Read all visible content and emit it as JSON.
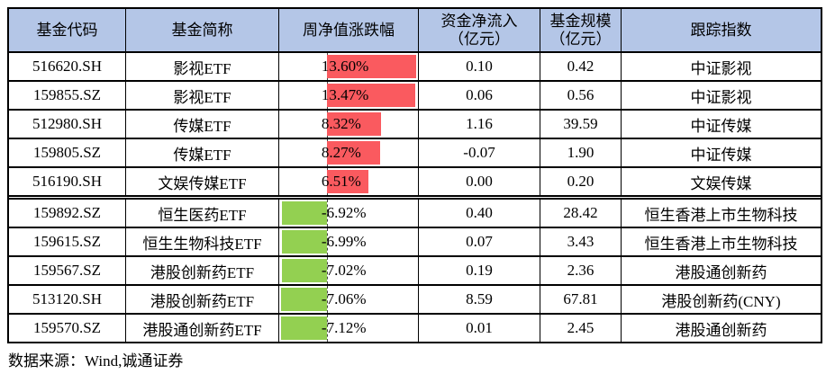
{
  "table": {
    "header_bg": "#B4C6E7",
    "border_color": "#000000",
    "columns": [
      "基金代码",
      "基金简称",
      "周净值涨跌幅",
      "资金净流入\n（亿元）",
      "基金规模\n（亿元）",
      "跟踪指数"
    ]
  },
  "chart_data": {
    "type": "table",
    "columns": [
      "基金代码",
      "基金简称",
      "周净值涨跌幅",
      "资金净流入（亿元）",
      "基金规模（亿元）",
      "跟踪指数"
    ],
    "rows": [
      {
        "code": "516620.SH",
        "name": "影视ETF",
        "change_pct": 13.6,
        "change_label": "13.60%",
        "inflow": "0.10",
        "aum": "0.42",
        "index": "中证影视"
      },
      {
        "code": "159855.SZ",
        "name": "影视ETF",
        "change_pct": 13.47,
        "change_label": "13.47%",
        "inflow": "0.06",
        "aum": "0.56",
        "index": "中证影视"
      },
      {
        "code": "512980.SH",
        "name": "传媒ETF",
        "change_pct": 8.32,
        "change_label": "8.32%",
        "inflow": "1.16",
        "aum": "39.59",
        "index": "中证传媒"
      },
      {
        "code": "159805.SZ",
        "name": "传媒ETF",
        "change_pct": 8.27,
        "change_label": "8.27%",
        "inflow": "-0.07",
        "aum": "1.90",
        "index": "中证传媒"
      },
      {
        "code": "516190.SH",
        "name": "文娱传媒ETF",
        "change_pct": 6.51,
        "change_label": "6.51%",
        "inflow": "0.00",
        "aum": "0.20",
        "index": "文娱传媒"
      },
      {
        "code": "159892.SZ",
        "name": "恒生医药ETF",
        "change_pct": -6.92,
        "change_label": "-6.92%",
        "inflow": "0.40",
        "aum": "28.42",
        "index": "恒生香港上市生物科技"
      },
      {
        "code": "159615.SZ",
        "name": "恒生生物科技ETF",
        "change_pct": -6.99,
        "change_label": "-6.99%",
        "inflow": "0.07",
        "aum": "3.43",
        "index": "恒生香港上市生物科技"
      },
      {
        "code": "159567.SZ",
        "name": "港股创新药ETF",
        "change_pct": -7.02,
        "change_label": "-7.02%",
        "inflow": "0.19",
        "aum": "2.36",
        "index": "港股通创新药"
      },
      {
        "code": "513120.SH",
        "name": "港股创新药ETF",
        "change_pct": -7.06,
        "change_label": "-7.06%",
        "inflow": "8.59",
        "aum": "67.81",
        "index": "港股创新药(CNY)"
      },
      {
        "code": "159570.SZ",
        "name": "港股通创新药ETF",
        "change_pct": -7.12,
        "change_label": "-7.12%",
        "inflow": "0.01",
        "aum": "2.45",
        "index": "港股通创新药"
      }
    ],
    "group_break_before_row": 5,
    "databar": {
      "max": 13.6,
      "min": -7.12,
      "positive_color": "#FA5A5F",
      "negative_color": "#93D051",
      "axis_style": "dashed"
    }
  },
  "footer": {
    "source_note": "数据来源：Wind,诚通证券"
  }
}
